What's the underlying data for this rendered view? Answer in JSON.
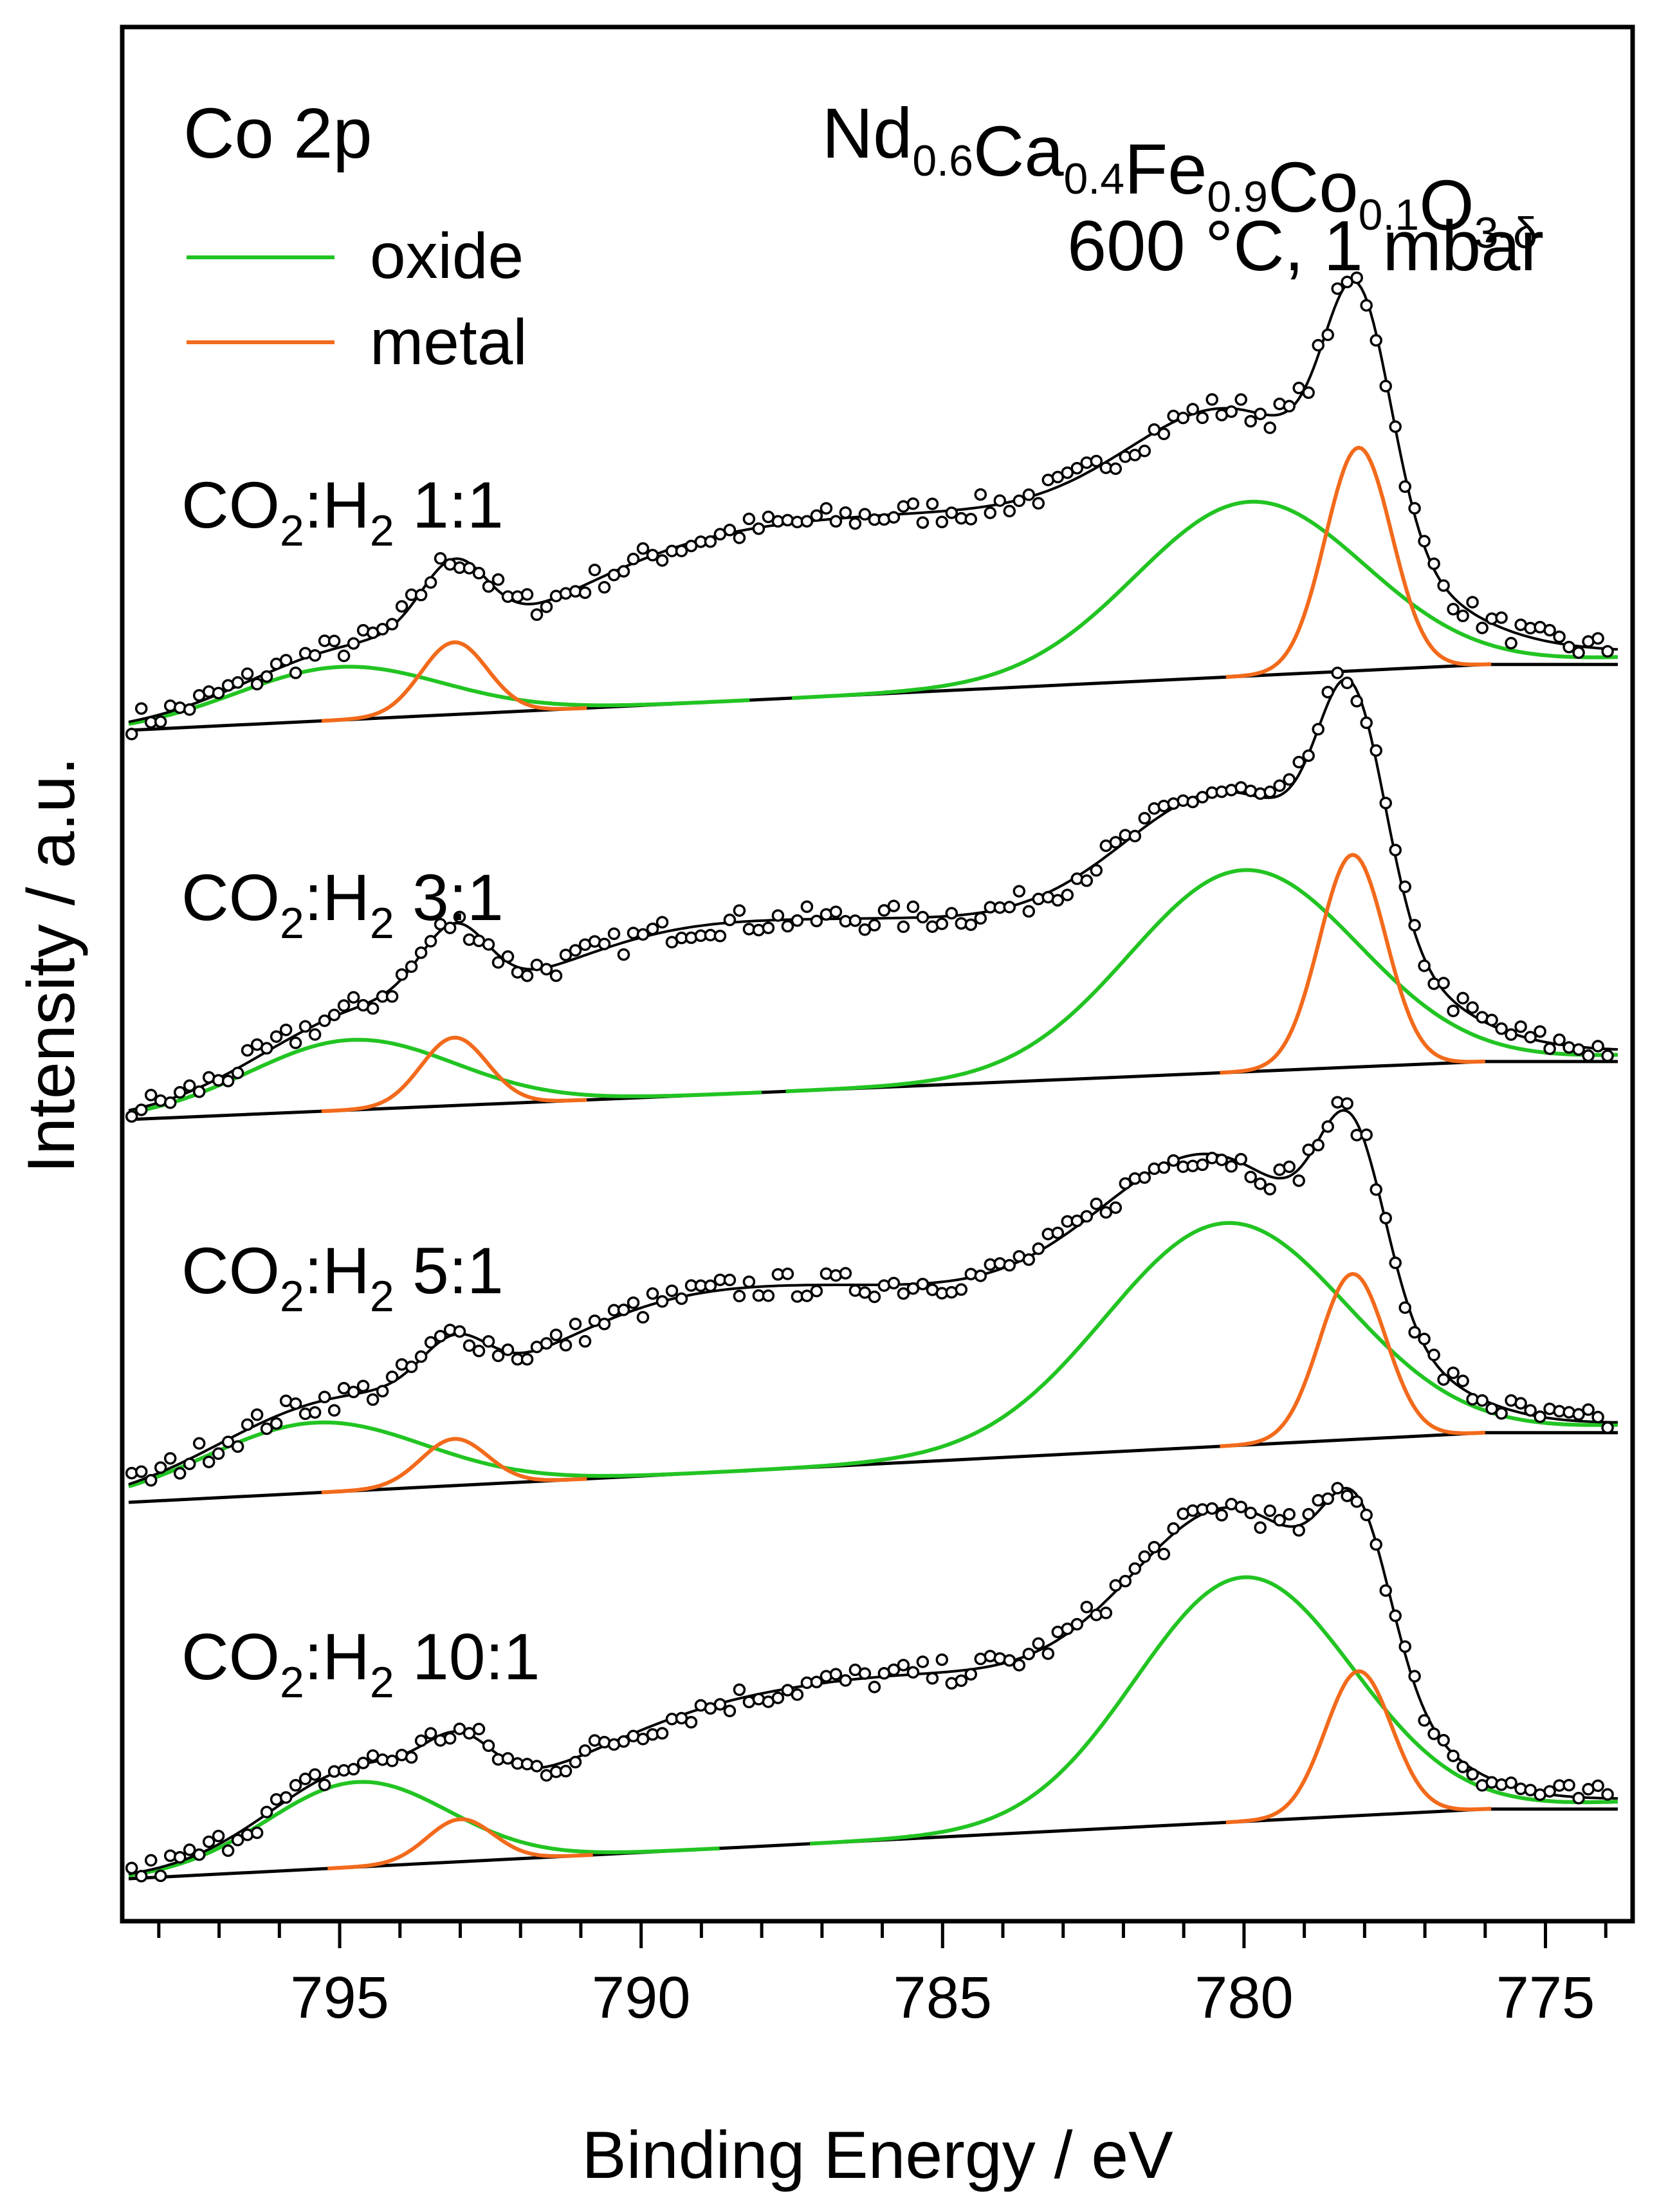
{
  "chart_data": {
    "type": "line",
    "title": "Co 2p",
    "sample": {
      "base": "Nd",
      "parts": [
        {
          "el": "Nd",
          "sub": "0.6"
        },
        {
          "el": "Ca",
          "sub": "0.4"
        },
        {
          "el": "Fe",
          "sub": "0.9"
        },
        {
          "el": "Co",
          "sub": "0.1"
        },
        {
          "el": "O",
          "sub": "3-δ"
        }
      ]
    },
    "conditions": "600 °C, 1 mbar",
    "xlabel": "Binding Energy / eV",
    "ylabel": "Intensity / a.u.",
    "xlim": [
      798.5,
      773.8
    ],
    "x_ticks": [
      795,
      790,
      785,
      780,
      775
    ],
    "x_reversed": true,
    "legend": [
      {
        "label": "oxide",
        "color": "#22c422"
      },
      {
        "label": "metal",
        "color": "#f26a1b"
      }
    ],
    "legend_position": "top-left",
    "colors": {
      "envelope": "#000000",
      "oxide": "#22c422",
      "metal": "#f26a1b",
      "data": "#000000"
    },
    "series": [
      {
        "name": "CO2:H2 1:1",
        "gas": "CO",
        "gas_sub": "2",
        "h": "H",
        "h_sub": "2",
        "ratio": "1:1",
        "baseline": {
          "left": 0,
          "right": 0.34
        },
        "peaks": [
          {
            "type": "oxide",
            "center": 779.9,
            "width": 1.9,
            "height": 0.82
          },
          {
            "type": "oxide",
            "center": 795.0,
            "width": 1.7,
            "height": 0.25
          },
          {
            "type": "metal",
            "center": 778.1,
            "width": 0.55,
            "height": 1.05
          },
          {
            "type": "metal",
            "center": 793.1,
            "width": 0.55,
            "height": 0.34
          },
          {
            "type": "sat",
            "center": 785.0,
            "width": 4.5,
            "height": 0.8
          },
          {
            "type": "sat",
            "center": 790.0,
            "width": 2.3,
            "height": 0.25
          }
        ]
      },
      {
        "name": "CO2:H2 3:1",
        "gas": "CO",
        "gas_sub": "2",
        "h": "H",
        "h_sub": "2",
        "ratio": "3:1",
        "baseline": {
          "left": 0,
          "right": 0.3
        },
        "peaks": [
          {
            "type": "oxide",
            "center": 780.0,
            "width": 1.9,
            "height": 0.95
          },
          {
            "type": "oxide",
            "center": 794.8,
            "width": 1.7,
            "height": 0.33
          },
          {
            "type": "metal",
            "center": 778.2,
            "width": 0.55,
            "height": 1.0
          },
          {
            "type": "metal",
            "center": 793.1,
            "width": 0.55,
            "height": 0.32
          },
          {
            "type": "sat",
            "center": 785.5,
            "width": 4.5,
            "height": 0.75
          },
          {
            "type": "sat",
            "center": 790.5,
            "width": 2.3,
            "height": 0.3
          }
        ]
      },
      {
        "name": "CO2:H2 5:1",
        "gas": "CO",
        "gas_sub": "2",
        "h": "H",
        "h_sub": "2",
        "ratio": "5:1",
        "baseline": {
          "left": 0,
          "right": 0.36
        },
        "peaks": [
          {
            "type": "oxide",
            "center": 780.3,
            "width": 2.0,
            "height": 1.05
          },
          {
            "type": "oxide",
            "center": 795.4,
            "width": 1.8,
            "height": 0.33
          },
          {
            "type": "metal",
            "center": 778.2,
            "width": 0.55,
            "height": 0.78
          },
          {
            "type": "metal",
            "center": 793.1,
            "width": 0.55,
            "height": 0.22
          },
          {
            "type": "sat",
            "center": 786.0,
            "width": 4.2,
            "height": 0.78
          },
          {
            "type": "sat",
            "center": 790.5,
            "width": 2.3,
            "height": 0.3
          }
        ]
      },
      {
        "name": "CO2:H2 10:1",
        "gas": "CO",
        "gas_sub": "2",
        "h": "H",
        "h_sub": "2",
        "ratio": "10:1",
        "baseline": {
          "left": 0,
          "right": 0.36
        },
        "peaks": [
          {
            "type": "oxide",
            "center": 780.0,
            "width": 1.8,
            "height": 1.15
          },
          {
            "type": "oxide",
            "center": 794.7,
            "width": 1.5,
            "height": 0.4
          },
          {
            "type": "metal",
            "center": 778.1,
            "width": 0.55,
            "height": 0.68
          },
          {
            "type": "metal",
            "center": 793.0,
            "width": 0.55,
            "height": 0.2
          },
          {
            "type": "sat",
            "center": 785.5,
            "width": 4.2,
            "height": 0.75
          },
          {
            "type": "sat",
            "center": 790.0,
            "width": 2.0,
            "height": 0.15
          }
        ]
      }
    ]
  }
}
